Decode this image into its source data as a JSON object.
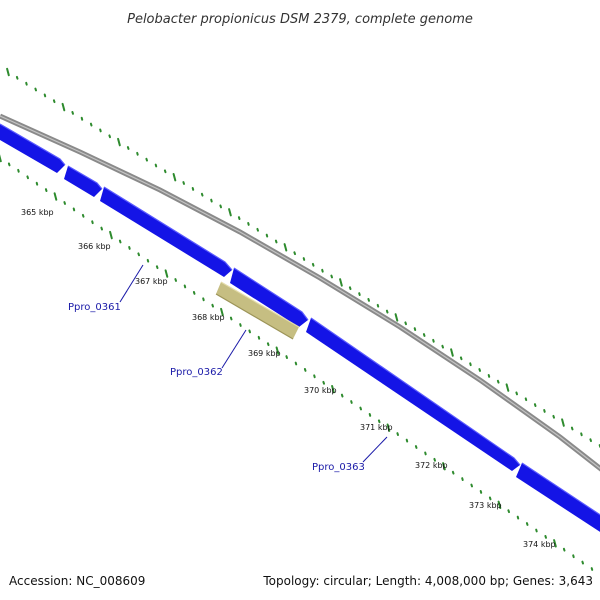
{
  "title": "Pelobacter propionicus DSM 2379, complete genome",
  "accession": "Accession: NC_008609",
  "summary": "Topology: circular; Length: 4,008,000 bp; Genes: 3,643",
  "colors": {
    "backbone": "#8a8a8a",
    "cds_forward": "#1414e6",
    "cds_highlight": "#c6be82",
    "tick_dots": "#2e8b2e",
    "label_link": "#1a1aa8",
    "gene_label": "#1a1aa8"
  },
  "scale_ticks": [
    {
      "kbp": 365,
      "label": "365 kbp"
    },
    {
      "kbp": 366,
      "label": "366 kbp"
    },
    {
      "kbp": 367,
      "label": "367 kbp"
    },
    {
      "kbp": 368,
      "label": "368 kbp"
    },
    {
      "kbp": 369,
      "label": "369 kbp"
    },
    {
      "kbp": 370,
      "label": "370 kbp"
    },
    {
      "kbp": 371,
      "label": "371 kbp"
    },
    {
      "kbp": 372,
      "label": "372 kbp"
    },
    {
      "kbp": 373,
      "label": "373 kbp"
    },
    {
      "kbp": 374,
      "label": "374 kbp"
    }
  ],
  "gene_labels": [
    {
      "text": "Ppro_0361"
    },
    {
      "text": "Ppro_0362"
    },
    {
      "text": "Ppro_0363"
    }
  ]
}
